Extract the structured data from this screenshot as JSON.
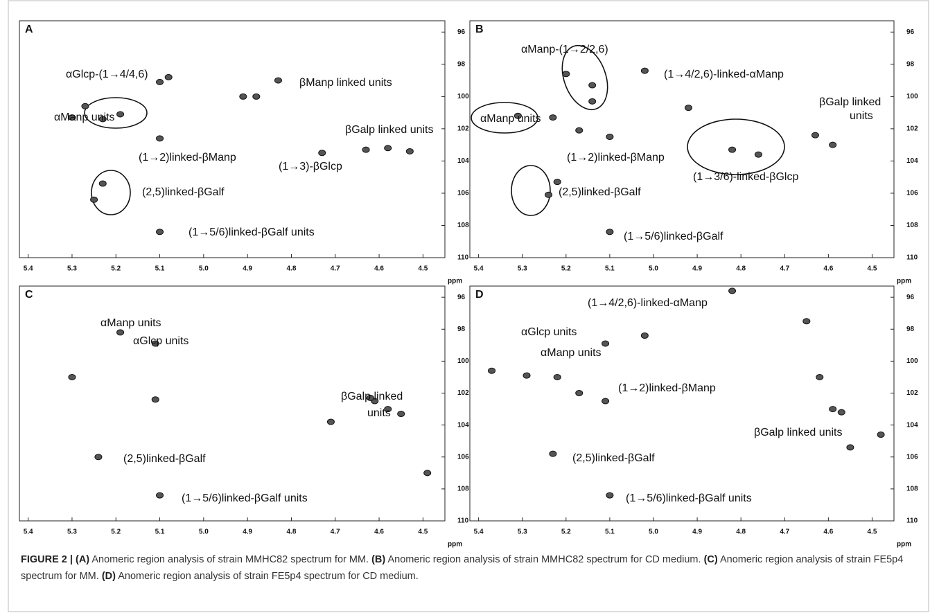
{
  "chart_data": [
    {
      "type": "scatter",
      "label": "A",
      "xlabel": "ppm",
      "xlim": [
        5.42,
        4.45
      ],
      "ylim": [
        95.3,
        110
      ],
      "xticks": [
        5.4,
        5.3,
        5.2,
        5.1,
        {
          "value": 5,
          "label": "5.0"
        },
        4.9,
        4.8,
        4.7,
        4.6,
        4.5
      ],
      "yticks": [
        96,
        98,
        100,
        102,
        104,
        106,
        108,
        110
      ],
      "x": [
        5.27,
        5.3,
        5.23,
        5.19,
        5.1,
        5.08,
        4.83,
        4.91,
        4.88,
        5.1,
        4.73,
        4.63,
        4.58,
        4.53,
        5.23,
        5.25,
        5.1
      ],
      "y": [
        100.6,
        101.3,
        101.4,
        101.1,
        99.1,
        98.8,
        99.0,
        100.0,
        100.0,
        102.6,
        103.5,
        103.3,
        103.2,
        103.4,
        105.4,
        106.4,
        108.4
      ],
      "annotations": [
        "αGlcp-(1→4/4,6)",
        "βManp linked units",
        "αManp units",
        "βGalp linked units",
        "(1→2)linked-βManp",
        "(1→3)-βGlcp",
        "(2,5)linked-βGalf",
        "(1→5/6)linked-βGalf units"
      ]
    },
    {
      "type": "scatter",
      "label": "B",
      "xlabel": "ppm",
      "xlim": [
        5.42,
        4.45
      ],
      "ylim": [
        95.3,
        110
      ],
      "xticks": [
        5.4,
        5.3,
        5.2,
        5.1,
        {
          "value": 5,
          "label": "5.0"
        },
        4.9,
        4.8,
        4.7,
        4.6,
        4.5
      ],
      "yticks": [
        96,
        98,
        100,
        102,
        104,
        106,
        108,
        110
      ],
      "x": [
        5.2,
        5.14,
        5.14,
        5.02,
        4.92,
        5.31,
        5.23,
        5.17,
        5.1,
        4.82,
        4.76,
        4.59,
        4.63,
        5.22,
        5.24,
        5.1
      ],
      "y": [
        98.6,
        99.3,
        100.3,
        98.4,
        100.7,
        101.2,
        101.3,
        102.1,
        102.5,
        103.3,
        103.6,
        103.0,
        102.4,
        105.3,
        106.1,
        108.4
      ],
      "annotations": [
        "αManp-(1→2/2,6)",
        "(1→4/2,6)-linked-αManp",
        "αManp units",
        "βGalp linked",
        "units",
        "(1→2)linked-βManp",
        "(1→3/6)-linked-βGlcp",
        "(2,5)linked-βGalf",
        "(1→5/6)linked-βGalf"
      ]
    },
    {
      "type": "scatter",
      "label": "C",
      "xlabel": "ppm",
      "xlim": [
        5.42,
        4.45
      ],
      "ylim": [
        95.3,
        110
      ],
      "xticks": [
        5.4,
        5.3,
        5.2,
        5.1,
        {
          "value": 5,
          "label": "5.0"
        },
        4.9,
        4.8,
        4.7,
        4.6,
        4.5
      ],
      "yticks": [
        96,
        98,
        100,
        102,
        104,
        106,
        108,
        110
      ],
      "x": [
        5.19,
        5.11,
        5.3,
        5.11,
        4.61,
        4.62,
        4.58,
        4.55,
        4.71,
        5.24,
        4.49,
        5.1
      ],
      "y": [
        98.2,
        98.9,
        101.0,
        102.4,
        102.5,
        102.3,
        103.0,
        103.3,
        103.8,
        106.0,
        107.0,
        108.4
      ],
      "annotations": [
        "αManp units",
        "αGlcp units",
        "βGalp linked",
        "units",
        "(2,5)linked-βGalf",
        "(1→5/6)linked-βGalf units"
      ]
    },
    {
      "type": "scatter",
      "label": "D",
      "xlabel": "ppm",
      "xlim": [
        5.42,
        4.45
      ],
      "ylim": [
        95.3,
        110
      ],
      "xticks": [
        5.4,
        5.3,
        5.2,
        5.1,
        {
          "value": 5,
          "label": "5.0"
        },
        4.9,
        4.8,
        4.7,
        4.6,
        4.5
      ],
      "yticks": [
        96,
        98,
        100,
        102,
        104,
        106,
        108,
        110
      ],
      "x": [
        5.02,
        4.82,
        4.65,
        5.11,
        5.37,
        5.29,
        4.62,
        5.22,
        5.17,
        5.11,
        4.59,
        4.57,
        4.48,
        4.55,
        5.23,
        5.1
      ],
      "y": [
        98.4,
        95.6,
        97.5,
        98.9,
        100.6,
        100.9,
        101.0,
        101.0,
        102.0,
        102.5,
        103.0,
        103.2,
        104.6,
        105.4,
        105.8,
        108.4
      ],
      "annotations": [
        "(1→4/2,6)-linked-αManp",
        "αGlcp units",
        "αManp units",
        "(1→2)linked-βManp",
        "βGalp linked units",
        "(2,5)linked-βGalf",
        "(1→5/6)linked-βGalf units"
      ]
    }
  ],
  "caption": {
    "label": "FIGURE 2 |",
    "parts": [
      {
        "key": "(A)",
        "text": "Anomeric region analysis of strain MMHC82 spectrum for MM."
      },
      {
        "key": "(B)",
        "text": "Anomeric region analysis of strain MMHC82 spectrum for CD medium."
      },
      {
        "key": "(C)",
        "text": "Anomeric region analysis of strain FE5p4 spectrum for MM."
      },
      {
        "key": "(D)",
        "text": "Anomeric region analysis of strain FE5p4 spectrum for CD medium."
      }
    ]
  }
}
